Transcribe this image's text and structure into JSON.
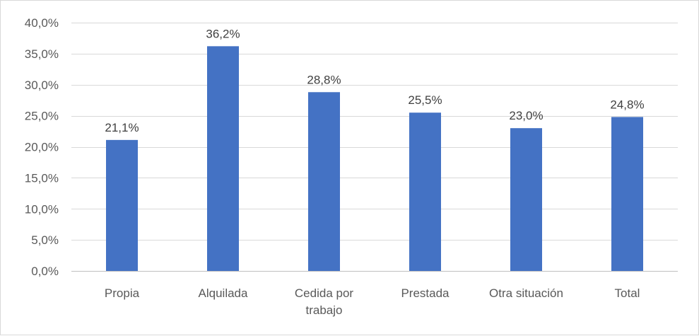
{
  "chart_data": {
    "type": "bar",
    "categories": [
      [
        "Propia"
      ],
      [
        "Alquilada"
      ],
      [
        "Cedida por",
        "trabajo"
      ],
      [
        "Prestada"
      ],
      [
        "Otra situación"
      ],
      [
        "Total"
      ]
    ],
    "values": [
      21.1,
      36.2,
      28.8,
      25.5,
      23.0,
      24.8
    ],
    "data_labels": [
      "21,1%",
      "36,2%",
      "28,8%",
      "25,5%",
      "23,0%",
      "24,8%"
    ],
    "title": "",
    "xlabel": "",
    "ylabel": "",
    "ylim": [
      0,
      40
    ],
    "yticks": [
      0,
      5,
      10,
      15,
      20,
      25,
      30,
      35,
      40
    ],
    "ytick_labels": [
      "0,0%",
      "5,0%",
      "10,0%",
      "15,0%",
      "20,0%",
      "25,0%",
      "30,0%",
      "35,0%",
      "40,0%"
    ],
    "grid": true,
    "legend": "none",
    "colors": {
      "bar": "#4472C4",
      "grid": "#d9d9d9",
      "axis": "#bfbfbf"
    }
  }
}
